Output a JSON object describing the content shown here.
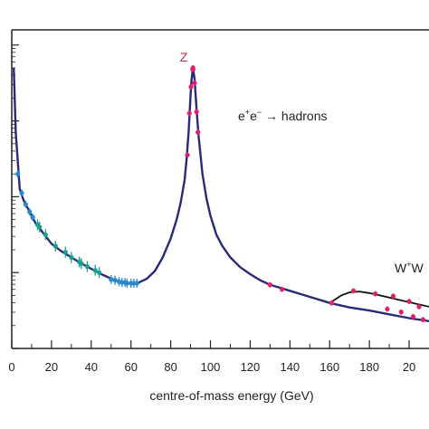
{
  "chart_data": {
    "type": "line",
    "title": "",
    "xlabel": "centre-of-mass energy (GeV)",
    "ylabel": "",
    "xlim": [
      0,
      210
    ],
    "ylim_log10": [
      -3.0,
      1.2
    ],
    "x_ticks": [
      "0",
      "20",
      "40",
      "60",
      "80",
      "100",
      "120",
      "140",
      "160",
      "180",
      "20"
    ],
    "y_log_scale": true,
    "grid": false,
    "colors": {
      "theory": "#2a2a7a",
      "ww": "#111111",
      "z_label": "#c0304a",
      "lep": "#e0206a",
      "tristan": "#2a8ad0",
      "petra": "#1aa08a",
      "low": "#2a8ad0"
    },
    "annotations": {
      "z_peak": "Z",
      "process_e1": "e",
      "process_sup1": "+",
      "process_e2": "e",
      "process_sup2": "−",
      "process_arrow": " → hadrons",
      "ww_w1": "W",
      "ww_sup": "+",
      "ww_w2": "W"
    },
    "series": [
      {
        "x": [
          1,
          2,
          4,
          6,
          8,
          10,
          12,
          15,
          20,
          25,
          30,
          35,
          40,
          45,
          50,
          55,
          60,
          64,
          68,
          72,
          76,
          80,
          83,
          85,
          87,
          88,
          89,
          90,
          90.5,
          91.2,
          92,
          93,
          94,
          96,
          98,
          100,
          103,
          106,
          110,
          115,
          120,
          125,
          130,
          140,
          150,
          160,
          170,
          180,
          190,
          200,
          210
        ],
        "y": [
          0.7,
          -0.15,
          -0.9,
          -1.05,
          -1.15,
          -1.25,
          -1.35,
          -1.45,
          -1.62,
          -1.72,
          -1.8,
          -1.88,
          -1.95,
          -2.02,
          -2.08,
          -2.12,
          -2.14,
          -2.13,
          -2.08,
          -1.98,
          -1.8,
          -1.55,
          -1.3,
          -1.08,
          -0.78,
          -0.5,
          -0.15,
          0.35,
          0.55,
          0.7,
          0.55,
          0.15,
          -0.2,
          -0.7,
          -1.02,
          -1.25,
          -1.5,
          -1.65,
          -1.8,
          -1.93,
          -2.02,
          -2.1,
          -2.16,
          -2.24,
          -2.32,
          -2.4,
          -2.46,
          -2.5,
          -2.55,
          -2.6,
          -2.64
        ]
      },
      {
        "x": [
          160,
          163,
          166,
          170,
          175,
          180,
          185,
          190,
          195,
          200,
          205,
          210
        ],
        "y": [
          -2.4,
          -2.35,
          -2.3,
          -2.26,
          -2.25,
          -2.27,
          -2.3,
          -2.33,
          -2.36,
          -2.39,
          -2.42,
          -2.45
        ]
      },
      {
        "x": [
          13,
          14,
          17,
          22,
          27,
          30,
          34,
          35,
          38,
          42,
          44
        ],
        "y": [
          -1.37,
          -1.4,
          -1.5,
          -1.65,
          -1.73,
          -1.8,
          -1.86,
          -1.88,
          -1.92,
          -1.97,
          -2.0
        ]
      },
      {
        "x": [
          50,
          52,
          54,
          55.5,
          57,
          58,
          60,
          61.4,
          63
        ],
        "y": [
          -2.09,
          -2.1,
          -2.12,
          -2.13,
          -2.13,
          -2.14,
          -2.14,
          -2.14,
          -2.14
        ]
      },
      {
        "x": [
          88.4,
          89.4,
          90.2,
          91.0,
          91.2,
          91.3,
          92.0,
          93.0,
          93.7,
          130,
          136,
          161,
          172,
          183,
          189,
          192,
          196,
          200,
          202,
          205,
          207
        ],
        "y": [
          -0.45,
          0.1,
          0.45,
          0.68,
          0.7,
          0.68,
          0.5,
          0.12,
          -0.15,
          -2.16,
          -2.22,
          -2.4,
          -2.24,
          -2.28,
          -2.48,
          -2.31,
          -2.52,
          -2.38,
          -2.58,
          -2.45,
          -2.62
        ]
      },
      {
        "x": [
          3,
          5,
          7,
          9,
          10.5
        ],
        "y": [
          -0.7,
          -0.95,
          -1.1,
          -1.2,
          -1.27
        ]
      }
    ]
  }
}
